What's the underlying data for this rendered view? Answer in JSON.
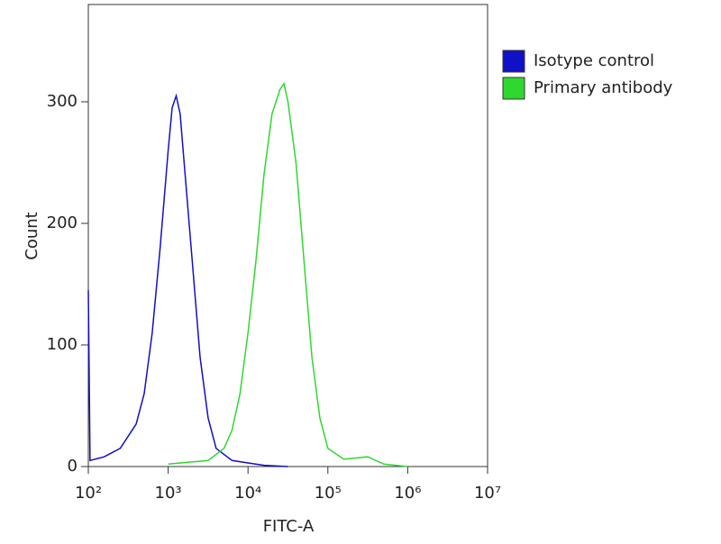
{
  "chart_data": {
    "type": "line",
    "x_label": "FITC-A",
    "y_label": "Count",
    "xscale": "log",
    "xlim": [
      100,
      10000000
    ],
    "ylim": [
      0,
      380
    ],
    "xticks": [
      {
        "value": 100,
        "label": "10²"
      },
      {
        "value": 1000,
        "label": "10³"
      },
      {
        "value": 10000,
        "label": "10⁴"
      },
      {
        "value": 100000,
        "label": "10⁵"
      },
      {
        "value": 1000000,
        "label": "10⁶"
      },
      {
        "value": 10000000,
        "label": "10⁷"
      }
    ],
    "yticks": [
      0,
      100,
      200,
      300
    ],
    "legend": "outside right",
    "series": [
      {
        "name": "Isotype control",
        "color": "#1010c8",
        "x": [
          100,
          105,
          158,
          251,
          398,
          501,
          631,
          794,
          1000,
          1122,
          1259,
          1413,
          1585,
          1995,
          2512,
          3162,
          3981,
          6310,
          10000,
          15849,
          31623
        ],
        "values": [
          145,
          5,
          8,
          15,
          35,
          60,
          110,
          180,
          260,
          295,
          305,
          290,
          250,
          170,
          90,
          40,
          15,
          5,
          3,
          1,
          0
        ]
      },
      {
        "name": "Primary antibody",
        "color": "#2fd82f",
        "x": [
          1000,
          3162,
          5012,
          6310,
          7943,
          10000,
          12589,
          15849,
          19953,
          25119,
          28184,
          31623,
          39811,
          50119,
          63096,
          79433,
          100000,
          158489,
          316228,
          501187,
          1000000
        ],
        "values": [
          2,
          5,
          15,
          30,
          60,
          110,
          170,
          240,
          290,
          310,
          315,
          300,
          250,
          170,
          90,
          40,
          15,
          6,
          8,
          2,
          0
        ]
      }
    ]
  }
}
